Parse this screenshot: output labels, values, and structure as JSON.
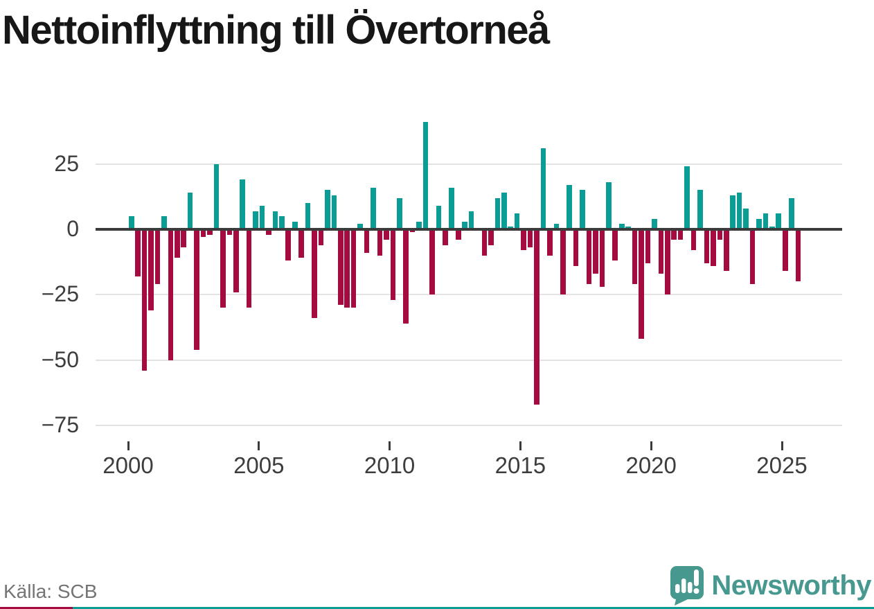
{
  "title": "Nettoinflyttning till Övertorneå",
  "source": "Källa: SCB",
  "logo": {
    "text": "Newsworthy"
  },
  "colors": {
    "positive": "#0a9d95",
    "negative": "#a50b40",
    "zero_line": "#3b3b3b",
    "gridline": "#e3e3e3",
    "axis_text": "#3d3d3d",
    "title_text": "#171717",
    "source_text": "#747474",
    "logo_teal": "#47988f",
    "strip_left": "#a50b40",
    "strip_right": "#0a9d95"
  },
  "chart_data": {
    "type": "bar",
    "title": "Nettoinflyttning till Övertorneå",
    "x_unit": "quarter",
    "start_year": 2000,
    "start_quarter": 1,
    "end_year": 2025,
    "end_quarter": 3,
    "values": [
      5,
      -18,
      -54,
      -31,
      -21,
      5,
      -50,
      -11,
      -7,
      14,
      -46,
      -3,
      -2,
      25,
      -30,
      -2,
      -24,
      19,
      -30,
      7,
      9,
      -2,
      7,
      5,
      -12,
      3,
      -11,
      10,
      -34,
      -6,
      15,
      13,
      -29,
      -30,
      -30,
      2,
      -9,
      16,
      -10,
      -4,
      -27,
      12,
      -36,
      -1,
      3,
      41,
      -25,
      9,
      -6,
      16,
      -4,
      3,
      7,
      0,
      -10,
      -6,
      12,
      14,
      1,
      6,
      -8,
      -7,
      -67,
      31,
      -10,
      2,
      -25,
      17,
      -14,
      15,
      -21,
      -17,
      -22,
      18,
      -12,
      2,
      1,
      -21,
      -42,
      -13,
      4,
      -17,
      -25,
      -4,
      -4,
      24,
      -8,
      15,
      -13,
      -14,
      -4,
      -16,
      13,
      14,
      8,
      -21,
      4,
      6,
      1,
      6,
      -16,
      12,
      -20
    ],
    "x_ticks": [
      2000,
      2005,
      2010,
      2015,
      2020,
      2025
    ],
    "y_ticks": [
      25,
      0,
      -25,
      -50,
      -75
    ],
    "ylim": [
      -75,
      48
    ],
    "grid": "horizontal",
    "legend": "none",
    "positive_color": "#0a9d95",
    "negative_color": "#a50b40"
  }
}
